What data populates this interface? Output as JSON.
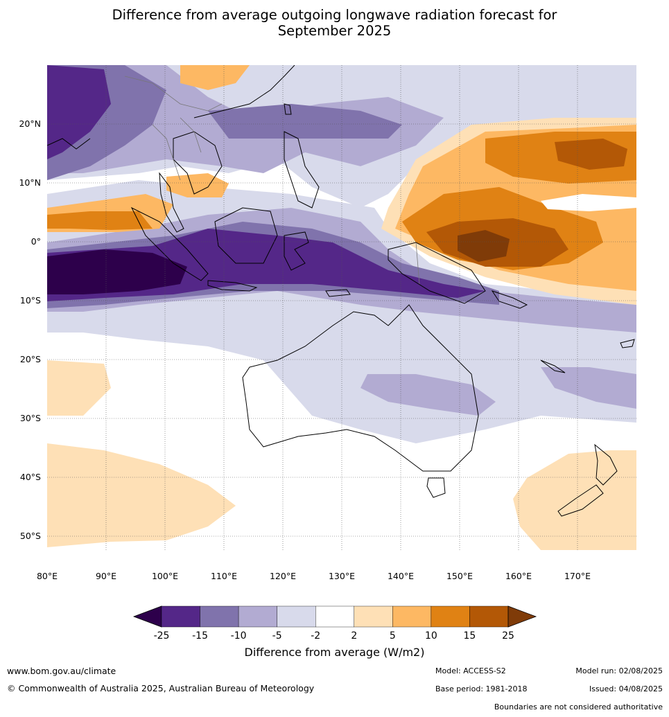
{
  "title_line1": "Difference from average outgoing longwave radiation forecast for",
  "title_line2": "September 2025",
  "map": {
    "lon_labels": [
      "80°E",
      "90°E",
      "100°E",
      "110°E",
      "120°E",
      "130°E",
      "140°E",
      "150°E",
      "160°E",
      "170°E"
    ],
    "lat_labels": [
      "20°N",
      "10°N",
      "0°",
      "10°S",
      "20°S",
      "30°S",
      "40°S",
      "50°S"
    ],
    "extent": {
      "lon": [
        80,
        180
      ],
      "lat": [
        -53,
        30
      ]
    }
  },
  "legend": {
    "title": "Difference from average (W/m2)",
    "tick_labels": [
      "-25",
      "-15",
      "-10",
      "-5",
      "-2",
      "2",
      "5",
      "10",
      "15",
      "25"
    ],
    "colors": {
      "below_-25": "#2d004b",
      "-25_-15": "#542788",
      "-15_-10": "#8073ac",
      "-10_-5": "#b2abd2",
      "-5_-2": "#d8daeb",
      "-2_2": "#ffffff",
      "2_5": "#fee0b6",
      "5_10": "#fdb863",
      "10_15": "#e08214",
      "15_25": "#b35806",
      "above_25": "#7f3b08"
    }
  },
  "footer": {
    "website": "www.bom.gov.au/climate",
    "copyright": "© Commonwealth of Australia 2025, Australian Bureau of Meteorology",
    "model": "Model: ACCESS-S2",
    "base_period": "Base period: 1981-2018",
    "model_run": "Model run: 02/08/2025",
    "issued": "Issued: 04/08/2025",
    "disclaimer": "Boundaries are not considered authoritative"
  }
}
